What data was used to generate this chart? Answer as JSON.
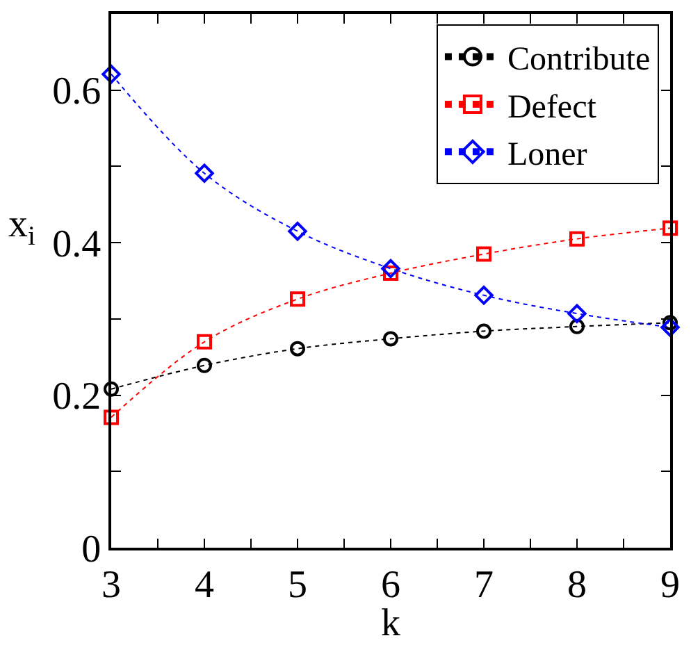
{
  "chart_data": {
    "type": "line",
    "xlabel": "k",
    "ylabel": "x$_{i}$",
    "x": [
      3,
      4,
      5,
      6,
      7,
      8,
      9
    ],
    "series": [
      {
        "name": "Contribute",
        "color": "#000000",
        "marker": "circle",
        "values": [
          0.208,
          0.239,
          0.261,
          0.274,
          0.284,
          0.29,
          0.295
        ]
      },
      {
        "name": "Defect",
        "color": "#ff0000",
        "marker": "square",
        "values": [
          0.171,
          0.27,
          0.326,
          0.36,
          0.385,
          0.405,
          0.419
        ]
      },
      {
        "name": "Loner",
        "color": "#0000ff",
        "marker": "diamond",
        "values": [
          0.621,
          0.491,
          0.415,
          0.366,
          0.331,
          0.307,
          0.289
        ]
      }
    ],
    "line_style": "dotted",
    "xlim": [
      3,
      9
    ],
    "ylim": [
      0,
      0.7
    ],
    "xticks": [
      3,
      {
        "value": 3.5,
        "label": null
      },
      4,
      {
        "value": 4.5,
        "label": null
      },
      5,
      {
        "value": 5.5,
        "label": null
      },
      6,
      {
        "value": 6.5,
        "label": null
      },
      7,
      {
        "value": 7.5,
        "label": null
      },
      8,
      {
        "value": 8.5,
        "label": null
      },
      9
    ],
    "yticks": [
      0,
      {
        "value": 0.1,
        "label": null
      },
      0.2,
      {
        "value": 0.3,
        "label": null
      },
      0.4,
      {
        "value": 0.5,
        "label": null
      },
      0.6
    ],
    "legend": "top right"
  }
}
